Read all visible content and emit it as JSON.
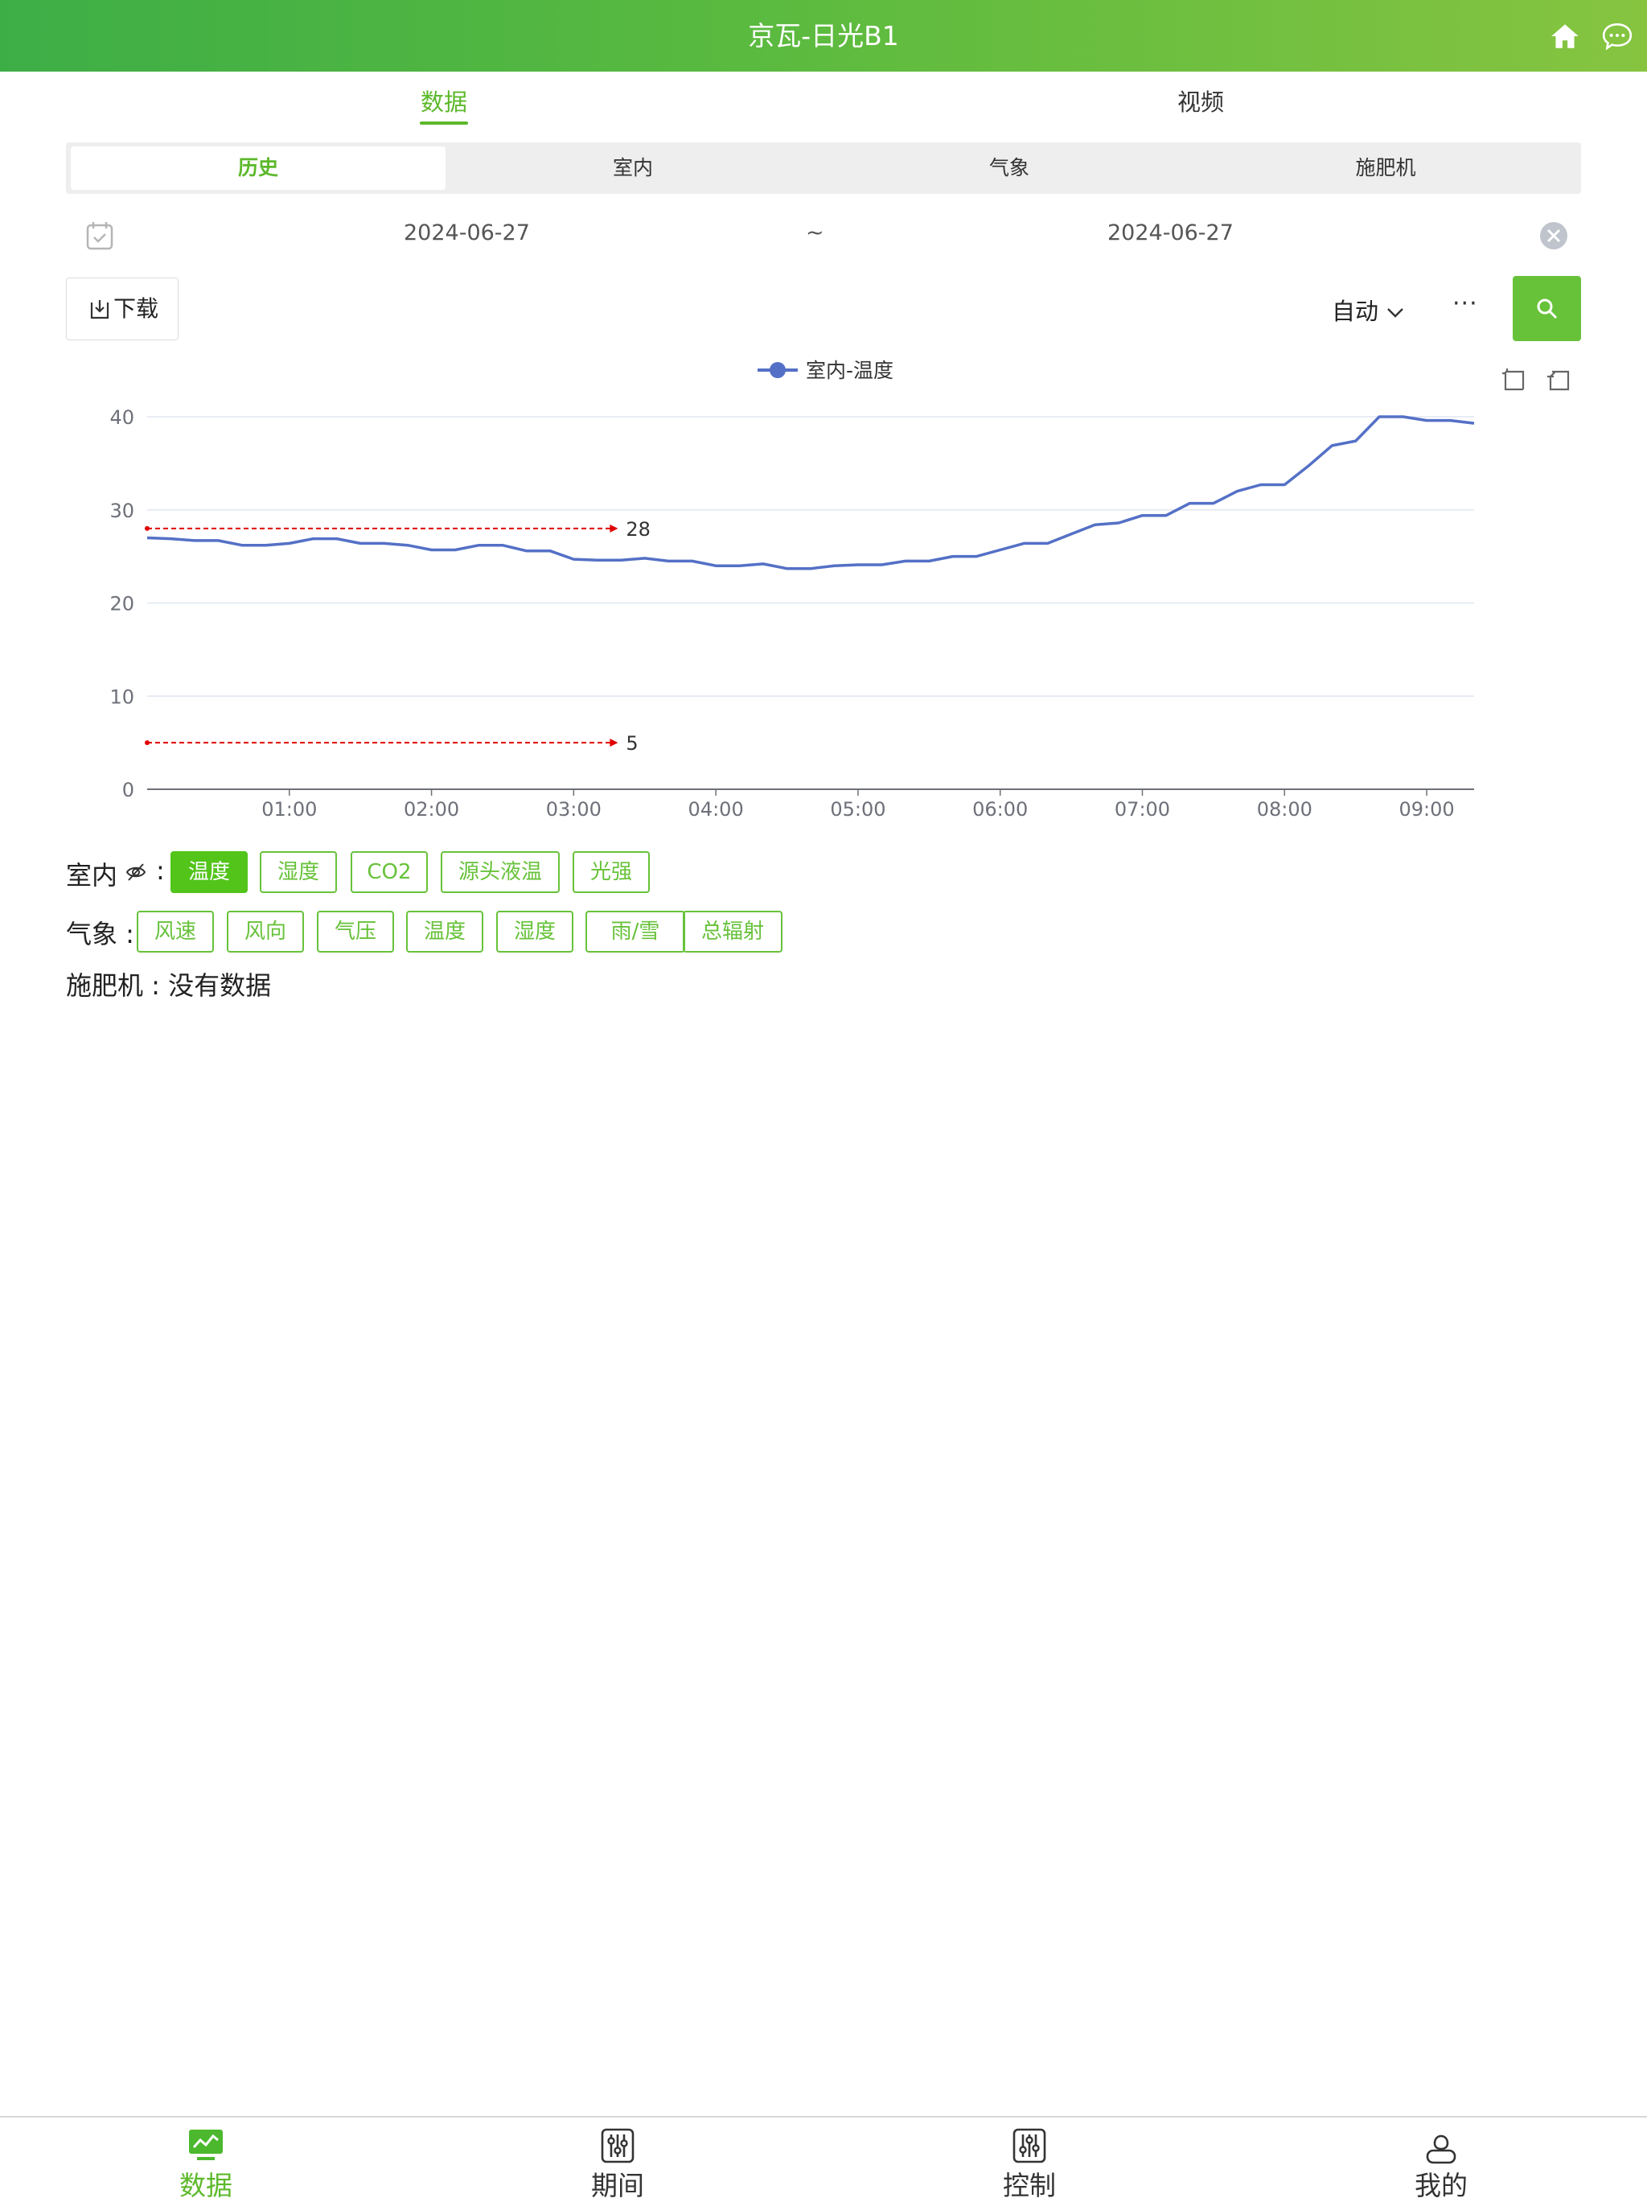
{
  "header": {
    "title": "京瓦-日光B1",
    "home_icon": "home-icon",
    "chat_icon": "chat-icon"
  },
  "top_tabs": [
    {
      "label": "数据",
      "active": true
    },
    {
      "label": "视频",
      "active": false
    }
  ],
  "segments": [
    {
      "label": "历史",
      "active": true
    },
    {
      "label": "室内"
    },
    {
      "label": "气象"
    },
    {
      "label": "施肥机"
    }
  ],
  "date_range": {
    "start": "2024-06-27",
    "separator": "~",
    "end": "2024-06-27"
  },
  "toolbar": {
    "download_label": "下载",
    "auto_label": "自动",
    "more_label": "···"
  },
  "chart_data": {
    "type": "line",
    "legend": "室内-温度",
    "series": [
      {
        "name": "室内-温度",
        "color": "#5470c6",
        "x": [
          0,
          10,
          20,
          30,
          40,
          50,
          60,
          70,
          80,
          90,
          100,
          110,
          120,
          130,
          140,
          150,
          160,
          170,
          180,
          190,
          200,
          210,
          220,
          230,
          240,
          250,
          260,
          270,
          280,
          290,
          300,
          310,
          320,
          330,
          340,
          350,
          360,
          370,
          380,
          390,
          400,
          410,
          420,
          430,
          440,
          450,
          460,
          470,
          480,
          490,
          500,
          510,
          520,
          530,
          540,
          550,
          560
        ],
        "values": [
          27,
          26.9,
          26.7,
          26.7,
          26.2,
          26.2,
          26.4,
          26.9,
          26.9,
          26.4,
          26.4,
          26.2,
          25.7,
          25.7,
          26.2,
          26.2,
          25.6,
          25.6,
          24.7,
          24.6,
          24.6,
          24.8,
          24.5,
          24.5,
          24.0,
          24.0,
          24.2,
          23.7,
          23.7,
          24.0,
          24.1,
          24.1,
          24.5,
          24.5,
          25.0,
          25.0,
          25.7,
          26.4,
          26.4,
          27.4,
          28.4,
          28.6,
          29.4,
          29.4,
          30.7,
          30.7,
          32.0,
          32.7,
          32.7,
          34.7,
          36.9,
          37.4,
          40.0,
          40.0,
          39.6,
          39.6,
          39.3
        ]
      }
    ],
    "x_ticks": [
      "01:00",
      "02:00",
      "03:00",
      "04:00",
      "05:00",
      "06:00",
      "07:00",
      "08:00",
      "09:00"
    ],
    "x_tick_values": [
      60,
      120,
      180,
      240,
      300,
      360,
      420,
      480,
      540
    ],
    "xlim": [
      0,
      560
    ],
    "ylim": [
      0,
      40
    ],
    "y_ticks": [
      0,
      10,
      20,
      30,
      40
    ],
    "thresholds": [
      {
        "value": 28,
        "label": "28",
        "color": "#e00000"
      },
      {
        "value": 5,
        "label": "5",
        "color": "#e00000"
      }
    ],
    "threshold_xrange": [
      0,
      198
    ],
    "grid": true
  },
  "filters": {
    "indoor": {
      "label": "室内",
      "suffix": ":",
      "chips": [
        {
          "label": "温度",
          "active": true
        },
        {
          "label": "湿度"
        },
        {
          "label": "CO2"
        },
        {
          "label": "源头液温"
        },
        {
          "label": "光强"
        }
      ]
    },
    "weather": {
      "label": "气象 :",
      "chips": [
        {
          "label": "风速"
        },
        {
          "label": "风向"
        },
        {
          "label": "气压"
        },
        {
          "label": "温度"
        },
        {
          "label": "湿度"
        },
        {
          "label": "雨/雪"
        },
        {
          "label": "总辐射"
        }
      ]
    },
    "fertilizer": {
      "text": "施肥机 : 没有数据"
    }
  },
  "bottom_nav": [
    {
      "label": "数据",
      "icon": "monitor-chart-icon",
      "active": true
    },
    {
      "label": "期间",
      "icon": "sliders-icon"
    },
    {
      "label": "控制",
      "icon": "control-sliders-icon"
    },
    {
      "label": "我的",
      "icon": "user-icon"
    }
  ],
  "colors": {
    "accent": "#5cb82a",
    "button": "#67c23a",
    "line": "#5470c6",
    "threshold": "#e00000"
  }
}
